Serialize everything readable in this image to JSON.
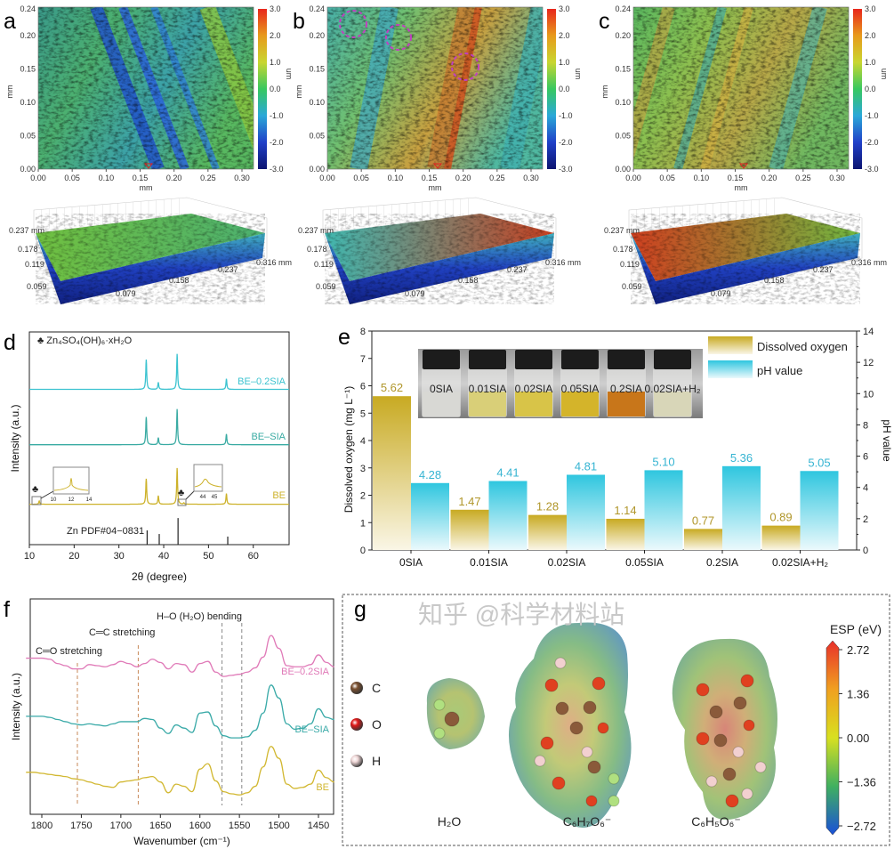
{
  "panels": {
    "a": {
      "label": "a"
    },
    "b": {
      "label": "b"
    },
    "c": {
      "label": "c"
    },
    "d": {
      "label": "d"
    },
    "e": {
      "label": "e"
    },
    "f": {
      "label": "f"
    },
    "g": {
      "label": "g"
    }
  },
  "surface_maps": {
    "x_ticks": [
      "0.00",
      "0.05",
      "0.10",
      "0.15",
      "0.20",
      "0.25",
      "0.30"
    ],
    "y_ticks": [
      "0.00",
      "0.05",
      "0.10",
      "0.15",
      "0.20",
      "0.24"
    ],
    "x_unit": "mm",
    "y_unit": "mm",
    "colorbar": {
      "ticks": [
        "3.0",
        "2.0",
        "1.0",
        "0.0",
        "-1.0",
        "-2.0",
        "-3.0"
      ],
      "unit": "um",
      "colors": [
        "#e8261c",
        "#e89a1c",
        "#c9d630",
        "#38c860",
        "#2aa8d8",
        "#2040c8",
        "#0c1470"
      ]
    },
    "surface_3d": {
      "depth_ticks": [
        "0.237 mm",
        "0.178",
        "0.119",
        "0.059"
      ],
      "width_ticks": [
        "0.079",
        "0.158",
        "0.237",
        "0.316 mm"
      ]
    },
    "maps": [
      {
        "panel": "a",
        "dominant": "blue-green with blue scratches"
      },
      {
        "panel": "b",
        "dominant": "cyan-green with orange band",
        "highlight_circle_color": "#c040c0"
      },
      {
        "panel": "c",
        "dominant": "green-yellow"
      }
    ]
  },
  "chart_data": [
    {
      "panel": "d",
      "type": "line",
      "xlabel": "2θ (degree)",
      "ylabel": "Intensity (a.u.)",
      "xlim": [
        10,
        68
      ],
      "xticks": [
        "10",
        "20",
        "30",
        "40",
        "50",
        "60"
      ],
      "annotation": "♣ Zn₄SO₄(OH)₆·xH₂O",
      "marker_symbol": "♣",
      "series": [
        {
          "name": "BE–0.2SIA",
          "color": "#3cc3d0",
          "baseline": 73,
          "peaks": [
            [
              36.1,
              14
            ],
            [
              38.8,
              3.3
            ],
            [
              43.0,
              16.7
            ],
            [
              54.0,
              5
            ]
          ]
        },
        {
          "name": "BE–SIA",
          "color": "#3aaba3",
          "baseline": 47,
          "peaks": [
            [
              36.1,
              13
            ],
            [
              38.8,
              3.3
            ],
            [
              43.0,
              16.7
            ],
            [
              54.0,
              5
            ]
          ]
        },
        {
          "name": "BE",
          "color": "#cdb22b",
          "baseline": 19,
          "peaks": [
            [
              12.2,
              1.5
            ],
            [
              36.1,
              12
            ],
            [
              38.8,
              4
            ],
            [
              43.0,
              17
            ],
            [
              44.5,
              0.6
            ],
            [
              54.0,
              5
            ]
          ]
        }
      ],
      "reference": {
        "name": "Zn  PDF#04−0831",
        "sticks": [
          [
            36.3,
            6.7
          ],
          [
            39.0,
            5
          ],
          [
            43.2,
            12.5
          ],
          [
            54.3,
            3.8
          ]
        ]
      },
      "insets": [
        {
          "xticks": [
            "10",
            "12",
            "14"
          ]
        },
        {
          "xticks": [
            "44",
            "45"
          ]
        }
      ]
    },
    {
      "panel": "e",
      "type": "bar",
      "categories": [
        "0SIA",
        "0.01SIA",
        "0.02SIA",
        "0.05SIA",
        "0.2SIA",
        "0.02SIA+H₂"
      ],
      "series": [
        {
          "name": "Dissolved oxygen",
          "axis": "left",
          "color": "#c8aa22",
          "values": [
            5.62,
            1.47,
            1.28,
            1.14,
            0.77,
            0.89
          ],
          "labels": [
            "5.62",
            "1.47",
            "1.28",
            "1.14",
            "0.77",
            "0.89"
          ]
        },
        {
          "name": "pH value",
          "axis": "right",
          "color": "#2fc6df",
          "values": [
            4.28,
            4.41,
            4.81,
            5.1,
            5.36,
            5.05
          ],
          "labels": [
            "4.28",
            "4.41",
            "4.81",
            "5.10",
            "5.36",
            "5.05"
          ]
        }
      ],
      "ylabel": "Dissolved oxygen (mg L⁻¹)",
      "y2label": "pH value",
      "ylim": [
        0,
        8
      ],
      "y2lim": [
        0,
        14
      ],
      "yticks": [
        "0",
        "1",
        "2",
        "3",
        "4",
        "5",
        "6",
        "7",
        "8"
      ],
      "y2ticks": [
        "0",
        "2",
        "4",
        "6",
        "8",
        "10",
        "12",
        "14"
      ],
      "legend": "top-right",
      "inset_photo_labels": [
        "0SIA",
        "0.01SIA",
        "0.02SIA",
        "0.05SIA",
        "0.2SIA",
        "0.02SIA+H₂"
      ],
      "inset_liquid_colors": [
        "#d8d8d4",
        "#d9cf78",
        "#d8c448",
        "#d4b42a",
        "#c8761a",
        "#d8d6b8"
      ]
    },
    {
      "panel": "f",
      "type": "line",
      "xlabel": "Wavenumber (cm⁻¹)",
      "ylabel": "Intensity (a.u.)",
      "xlim": [
        1820,
        1425
      ],
      "xticks": [
        "1800",
        "1750",
        "1700",
        "1650",
        "1600",
        "1550",
        "1500",
        "1450"
      ],
      "x": [
        1820,
        1810,
        1800,
        1790,
        1780,
        1770,
        1760,
        1750,
        1740,
        1730,
        1720,
        1710,
        1700,
        1690,
        1680,
        1670,
        1660,
        1650,
        1640,
        1630,
        1620,
        1610,
        1600,
        1590,
        1580,
        1570,
        1560,
        1550,
        1540,
        1530,
        1520,
        1510,
        1500,
        1490,
        1480,
        1470,
        1460,
        1450,
        1440,
        1430
      ],
      "series": [
        {
          "name": "BE–0.2SIA",
          "color": "#e07ab8",
          "values": [
            7.25,
            7.25,
            7.25,
            7.2,
            7.0,
            6.9,
            6.75,
            6.75,
            6.95,
            6.9,
            6.85,
            6.95,
            7.1,
            7.0,
            6.85,
            7.0,
            7.2,
            7.05,
            6.75,
            7.0,
            6.95,
            6.6,
            7.0,
            7.1,
            6.6,
            6.4,
            6.45,
            6.5,
            6.6,
            6.8,
            7.3,
            8.3,
            7.7,
            6.9,
            6.85,
            6.85,
            6.95,
            7.4,
            7.05,
            6.85
          ]
        },
        {
          "name": "BE–SIA",
          "color": "#3aaaa8",
          "values": [
            4.55,
            4.55,
            4.55,
            4.5,
            4.4,
            4.3,
            4.2,
            4.15,
            4.2,
            4.15,
            4.1,
            4.2,
            4.3,
            4.3,
            4.3,
            4.45,
            4.4,
            4.0,
            3.75,
            4.15,
            4.0,
            3.8,
            4.7,
            4.75,
            4.1,
            3.65,
            3.55,
            3.55,
            3.6,
            3.9,
            4.7,
            6.0,
            5.4,
            4.2,
            3.95,
            4.0,
            4.2,
            4.9,
            4.5,
            4.4
          ]
        },
        {
          "name": "BE",
          "color": "#d2b832",
          "values": [
            1.95,
            1.95,
            1.9,
            1.85,
            1.8,
            1.75,
            1.65,
            1.6,
            1.5,
            1.4,
            1.3,
            1.25,
            1.5,
            1.55,
            1.6,
            1.7,
            1.75,
            1.5,
            1.0,
            1.4,
            1.3,
            1.05,
            2.1,
            2.35,
            1.55,
            1.05,
            0.95,
            0.9,
            1.0,
            1.3,
            2.2,
            3.15,
            2.6,
            1.4,
            1.2,
            1.25,
            1.4,
            2.05,
            1.7,
            1.5
          ]
        }
      ],
      "reference_lines": [
        1755,
        1678,
        1572,
        1547
      ],
      "annotations": [
        "C═O stretching",
        "C═C stretching",
        "H–O (H₂O) bending"
      ]
    }
  ],
  "esp": {
    "legend": [
      {
        "symbol": "C",
        "color": "#7a5030"
      },
      {
        "symbol": "O",
        "color": "#e01818"
      },
      {
        "symbol": "H",
        "color": "#f0d8d8"
      }
    ],
    "molecules": [
      "H₂O",
      "C₆H₇O₆⁻",
      "C₆H₅O₆⁻"
    ],
    "colorbar_title": "ESP (eV)",
    "colorbar_ticks": [
      "2.72",
      "1.36",
      "0.00",
      "−1.36",
      "−2.72"
    ],
    "colorbar_colors": [
      "#e8302a",
      "#f0a020",
      "#d8e020",
      "#40b060",
      "#1a50d8"
    ]
  },
  "watermark": "知乎 @科学材料站"
}
